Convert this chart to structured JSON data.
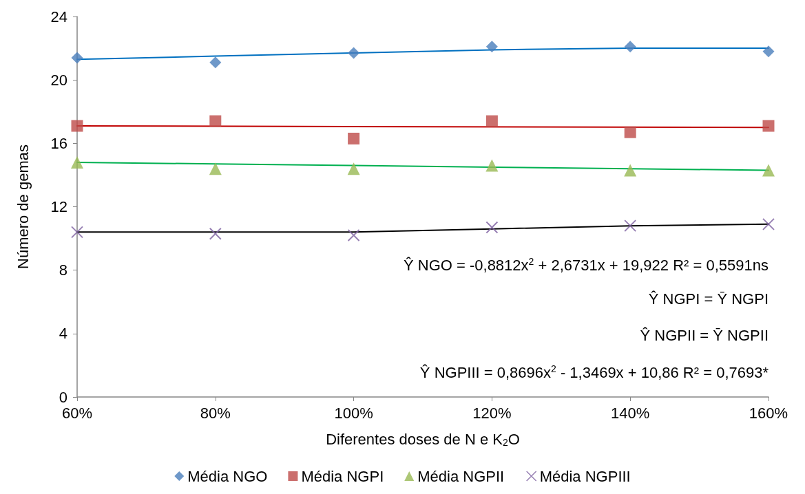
{
  "chart_data": {
    "type": "scatter",
    "xlabel": "Diferentes doses de N e K$_{2}$O",
    "ylabel": "Número de gemas",
    "x": [
      60,
      80,
      100,
      120,
      140,
      160
    ],
    "series": [
      {
        "name": "Média NGO",
        "marker": "diamond",
        "color": "#4a7ebb",
        "values": [
          21.4,
          21.1,
          21.7,
          22.1,
          22.1,
          21.8
        ]
      },
      {
        "name": "Média NGPI",
        "marker": "square",
        "color": "#be4b48",
        "values": [
          17.1,
          17.4,
          16.3,
          17.4,
          16.7,
          17.1
        ]
      },
      {
        "name": "Média NGPII",
        "marker": "triangle",
        "color": "#98b954",
        "values": [
          14.8,
          14.4,
          14.4,
          14.6,
          14.3,
          14.3
        ]
      },
      {
        "name": "Média NGPIII",
        "marker": "cross",
        "color": "#7d60a0",
        "values": [
          10.4,
          10.3,
          10.2,
          10.7,
          10.8,
          10.9
        ]
      },
      {
        "type": "line",
        "marker": "none",
        "color": "#0070c0",
        "values": [
          21.3,
          21.5,
          21.7,
          21.9,
          22.0,
          22.0
        ]
      },
      {
        "type": "line",
        "marker": "none",
        "color": "#c00000",
        "values": [
          17.1,
          null,
          null,
          null,
          null,
          17.0
        ]
      },
      {
        "type": "line",
        "marker": "none",
        "color": "#00b050",
        "values": [
          14.8,
          14.7,
          14.6,
          14.5,
          14.4,
          14.3
        ]
      },
      {
        "type": "line",
        "marker": "none",
        "color": "#000000",
        "values": [
          10.4,
          10.4,
          10.4,
          10.6,
          10.8,
          10.9
        ]
      }
    ],
    "xlim": [
      60,
      160
    ],
    "xticks": [
      {
        "value": 60,
        "label": "60%"
      },
      {
        "value": 80,
        "label": "80%"
      },
      {
        "value": 100,
        "label": "100%"
      },
      {
        "value": 120,
        "label": "120%"
      },
      {
        "value": 140,
        "label": "140%"
      },
      {
        "value": 160,
        "label": "160%"
      }
    ],
    "ylim": [
      0,
      24
    ],
    "yticks": [
      0,
      4,
      8,
      12,
      16,
      20,
      24
    ],
    "grid": false,
    "legend": "bottom",
    "line_style": "solid",
    "annotations": [
      "Ŷ NGO = -0,8812x$^{2}$ + 2,6731x + 19,922 R² = 0,5591ns",
      "Ŷ NGPI = Ȳ NGPI",
      "Ŷ NGPII = Ȳ NGPII",
      "Ŷ NGPIII = 0,8696x$^{2}$ - 1,3469x + 10,86 R² = 0,7693*"
    ]
  }
}
